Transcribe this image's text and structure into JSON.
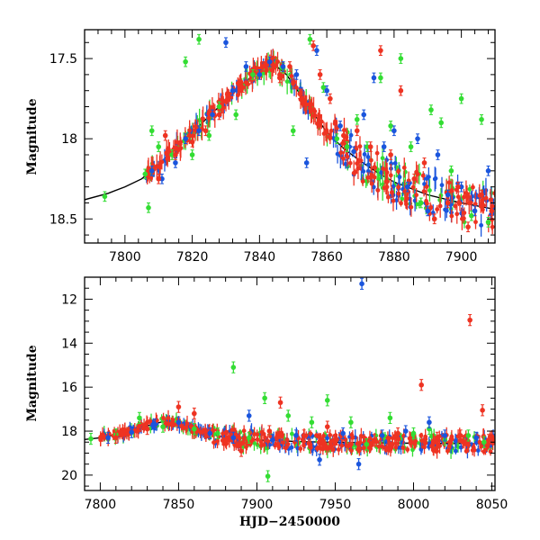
{
  "chart_data": [
    {
      "type": "scatter",
      "panel": "top",
      "title": "",
      "xlabel": "",
      "ylabel": "Magnitude",
      "xlim": [
        7788,
        7910
      ],
      "ylim": [
        18.65,
        17.32
      ],
      "y_inverted": true,
      "xticks": [
        7800,
        7820,
        7840,
        7860,
        7880,
        7900
      ],
      "yticks": [
        17.5,
        18,
        18.5
      ],
      "ytick_labels": [
        "17.5",
        "18",
        "18.5"
      ],
      "colors": {
        "green": "#33dd33",
        "blue": "#1a55dd",
        "red": "#ee3322",
        "model": "#000000"
      },
      "series": [
        {
          "color": "green",
          "points": [
            [
              7794,
              18.36
            ],
            [
              7806,
              18.22
            ],
            [
              7807,
              18.43
            ],
            [
              7808,
              17.95
            ],
            [
              7808,
              18.2
            ],
            [
              7810,
              18.05
            ],
            [
              7814,
              18.1
            ],
            [
              7818,
              17.52
            ],
            [
              7820,
              18.1
            ],
            [
              7822,
              17.38
            ],
            [
              7825,
              17.98
            ],
            [
              7828,
              17.8
            ],
            [
              7833,
              17.85
            ],
            [
              7838,
              17.6
            ],
            [
              7847,
              17.56
            ],
            [
              7850,
              17.95
            ],
            [
              7855,
              17.38
            ],
            [
              7859,
              17.68
            ],
            [
              7863,
              18.0
            ],
            [
              7866,
              18.05
            ],
            [
              7869,
              17.88
            ],
            [
              7872,
              18.05
            ],
            [
              7876,
              17.62
            ],
            [
              7879,
              17.92
            ],
            [
              7882,
              17.5
            ],
            [
              7885,
              18.05
            ],
            [
              7888,
              18.4
            ],
            [
              7891,
              17.82
            ],
            [
              7894,
              17.9
            ],
            [
              7897,
              18.2
            ],
            [
              7900,
              17.75
            ],
            [
              7903,
              18.48
            ],
            [
              7906,
              17.88
            ],
            [
              7908,
              18.52
            ]
          ]
        },
        {
          "color": "blue",
          "points": [
            [
              7808,
              18.2
            ],
            [
              7811,
              18.25
            ],
            [
              7815,
              18.15
            ],
            [
              7818,
              18.0
            ],
            [
              7822,
              17.95
            ],
            [
              7826,
              17.85
            ],
            [
              7830,
              17.4
            ],
            [
              7832,
              17.7
            ],
            [
              7836,
              17.55
            ],
            [
              7840,
              17.6
            ],
            [
              7843,
              17.52
            ],
            [
              7847,
              17.55
            ],
            [
              7851,
              17.6
            ],
            [
              7854,
              18.15
            ],
            [
              7857,
              17.45
            ],
            [
              7860,
              17.7
            ],
            [
              7864,
              17.92
            ],
            [
              7868,
              18.08
            ],
            [
              7871,
              17.85
            ],
            [
              7874,
              17.62
            ],
            [
              7877,
              18.05
            ],
            [
              7880,
              17.95
            ],
            [
              7884,
              18.3
            ],
            [
              7887,
              18.0
            ],
            [
              7890,
              18.45
            ],
            [
              7893,
              18.1
            ],
            [
              7896,
              18.35
            ],
            [
              7900,
              18.3
            ],
            [
              7904,
              18.45
            ],
            [
              7908,
              18.2
            ]
          ]
        },
        {
          "color": "red",
          "points": [
            [
              7810,
              18.25
            ],
            [
              7812,
              17.98
            ],
            [
              7815,
              18.1
            ],
            [
              7820,
              18.02
            ],
            [
              7824,
              17.95
            ],
            [
              7828,
              17.85
            ],
            [
              7835,
              17.68
            ],
            [
              7841,
              17.55
            ],
            [
              7846,
              17.62
            ],
            [
              7849,
              17.55
            ],
            [
              7852,
              17.72
            ],
            [
              7856,
              17.42
            ],
            [
              7858,
              17.6
            ],
            [
              7861,
              17.75
            ],
            [
              7865,
              17.98
            ],
            [
              7869,
              17.95
            ],
            [
              7873,
              18.05
            ],
            [
              7876,
              17.45
            ],
            [
              7879,
              18.1
            ],
            [
              7882,
              17.7
            ],
            [
              7886,
              18.25
            ],
            [
              7889,
              18.15
            ],
            [
              7892,
              18.5
            ],
            [
              7896,
              18.4
            ],
            [
              7899,
              18.3
            ],
            [
              7902,
              18.55
            ],
            [
              7906,
              18.35
            ],
            [
              7909,
              18.45
            ]
          ]
        }
      ],
      "model_curve": [
        [
          7788,
          18.38
        ],
        [
          7795,
          18.34
        ],
        [
          7800,
          18.3
        ],
        [
          7805,
          18.25
        ],
        [
          7810,
          18.16
        ],
        [
          7815,
          18.06
        ],
        [
          7820,
          17.96
        ],
        [
          7825,
          17.86
        ],
        [
          7830,
          17.76
        ],
        [
          7835,
          17.66
        ],
        [
          7840,
          17.57
        ],
        [
          7844,
          17.53
        ],
        [
          7848,
          17.6
        ],
        [
          7852,
          17.72
        ],
        [
          7856,
          17.84
        ],
        [
          7860,
          17.96
        ],
        [
          7865,
          18.06
        ],
        [
          7870,
          18.14
        ],
        [
          7875,
          18.21
        ],
        [
          7880,
          18.27
        ],
        [
          7890,
          18.35
        ],
        [
          7900,
          18.4
        ],
        [
          7910,
          18.44
        ]
      ]
    },
    {
      "type": "scatter",
      "panel": "bottom",
      "title": "",
      "xlabel": "HJD−2450000",
      "ylabel": "Magnitude",
      "xlim": [
        7790,
        8052
      ],
      "ylim": [
        20.7,
        11.0
      ],
      "y_inverted": true,
      "xticks": [
        7800,
        7850,
        7900,
        7950,
        8000,
        8050
      ],
      "yticks": [
        12,
        14,
        16,
        18,
        20
      ],
      "ytick_labels": [
        "12",
        "14",
        "16",
        "18",
        "20"
      ],
      "colors": {
        "green": "#33dd33",
        "blue": "#1a55dd",
        "red": "#ee3322",
        "model": "#000000"
      },
      "series": [
        {
          "color": "green",
          "points": [
            [
              7794,
              18.35
            ],
            [
              7810,
              18.15
            ],
            [
              7825,
              17.4
            ],
            [
              7840,
              17.8
            ],
            [
              7860,
              17.9
            ],
            [
              7875,
              18.1
            ],
            [
              7885,
              15.1
            ],
            [
              7895,
              18.3
            ],
            [
              7905,
              16.5
            ],
            [
              7907,
              20.05
            ],
            [
              7920,
              17.3
            ],
            [
              7935,
              17.6
            ],
            [
              7945,
              16.6
            ],
            [
              7960,
              17.6
            ],
            [
              7970,
              18.6
            ],
            [
              7985,
              17.4
            ],
            [
              8000,
              18.1
            ],
            [
              8010,
              17.9
            ],
            [
              8020,
              18.4
            ],
            [
              8035,
              18.2
            ],
            [
              8045,
              18.5
            ]
          ]
        },
        {
          "color": "blue",
          "points": [
            [
              7805,
              18.3
            ],
            [
              7820,
              18.05
            ],
            [
              7835,
              17.7
            ],
            [
              7850,
              17.6
            ],
            [
              7870,
              18.1
            ],
            [
              7885,
              18.3
            ],
            [
              7895,
              17.3
            ],
            [
              7910,
              18.4
            ],
            [
              7925,
              18.2
            ],
            [
              7940,
              19.3
            ],
            [
              7955,
              18.1
            ],
            [
              7965,
              19.5
            ],
            [
              7967,
              11.3
            ],
            [
              7980,
              18.2
            ],
            [
              7995,
              18.0
            ],
            [
              8010,
              17.6
            ],
            [
              8020,
              18.2
            ],
            [
              8040,
              18.3
            ]
          ]
        },
        {
          "color": "red",
          "points": [
            [
              7810,
              18.3
            ],
            [
              7830,
              17.9
            ],
            [
              7850,
              16.9
            ],
            [
              7860,
              17.2
            ],
            [
              7880,
              18.4
            ],
            [
              7890,
              18.9
            ],
            [
              7908,
              18.0
            ],
            [
              7915,
              16.7
            ],
            [
              7930,
              18.2
            ],
            [
              7945,
              17.8
            ],
            [
              7960,
              18.6
            ],
            [
              7975,
              18.4
            ],
            [
              7990,
              18.1
            ],
            [
              8005,
              15.9
            ],
            [
              8015,
              18.3
            ],
            [
              8030,
              18.2
            ],
            [
              8036,
              12.95
            ],
            [
              8044,
              17.05
            ],
            [
              8048,
              18.4
            ]
          ]
        }
      ],
      "model_curve": [
        [
          7790,
          18.38
        ],
        [
          7800,
          18.3
        ],
        [
          7810,
          18.16
        ],
        [
          7820,
          17.96
        ],
        [
          7830,
          17.76
        ],
        [
          7840,
          17.57
        ],
        [
          7845,
          17.53
        ],
        [
          7850,
          17.65
        ],
        [
          7860,
          17.96
        ],
        [
          7870,
          18.14
        ],
        [
          7880,
          18.27
        ],
        [
          7900,
          18.4
        ],
        [
          7930,
          18.48
        ],
        [
          7960,
          18.52
        ],
        [
          8000,
          18.55
        ],
        [
          8050,
          18.57
        ]
      ]
    }
  ]
}
